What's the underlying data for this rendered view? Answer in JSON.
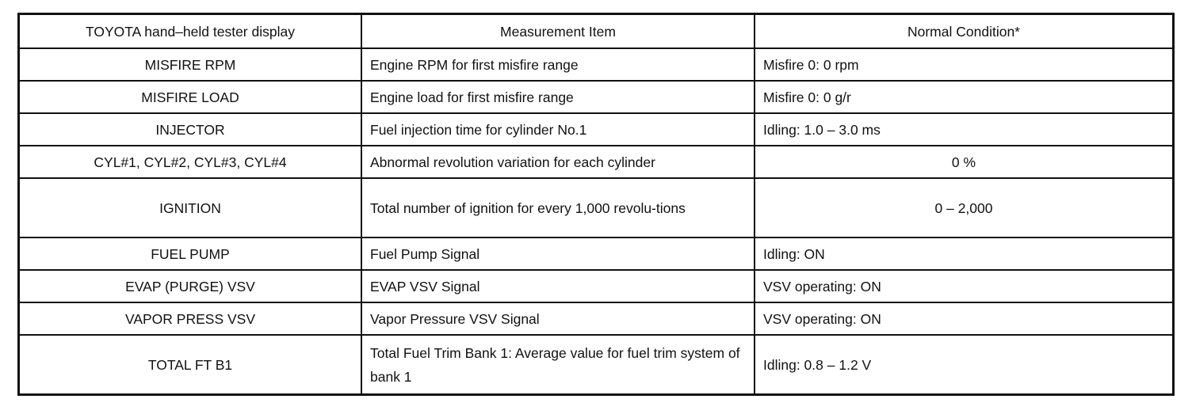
{
  "table": {
    "headers": [
      "TOYOTA hand–held tester display",
      "Measurement Item",
      "Normal Condition*"
    ],
    "rows": [
      {
        "display": "MISFIRE RPM",
        "item": "Engine RPM for first misfire range",
        "condition": "Misfire 0: 0 rpm",
        "center": false
      },
      {
        "display": "MISFIRE LOAD",
        "item": "Engine load for first misfire range",
        "condition": "Misfire 0: 0 g/r",
        "center": false
      },
      {
        "display": "INJECTOR",
        "item": "Fuel injection time for cylinder No.1",
        "condition": "Idling: 1.0 – 3.0 ms",
        "center": false
      },
      {
        "display": "CYL#1, CYL#2, CYL#3, CYL#4",
        "item": "Abnormal revolution variation for each cylinder",
        "condition": "0 %",
        "center": true
      },
      {
        "display": "IGNITION",
        "item": "Total number of ignition for every 1,000 revolu-tions",
        "condition": "0 – 2,000",
        "center": true
      },
      {
        "display": "FUEL PUMP",
        "item": "Fuel Pump Signal",
        "condition": "Idling: ON",
        "center": false
      },
      {
        "display": "EVAP (PURGE) VSV",
        "item": "EVAP VSV Signal",
        "condition": "VSV operating: ON",
        "center": false
      },
      {
        "display": "VAPOR PRESS VSV",
        "item": "Vapor Pressure VSV Signal",
        "condition": "VSV operating: ON",
        "center": false
      },
      {
        "display": "TOTAL FT B1",
        "item": "Total Fuel Trim Bank 1: Average value for fuel trim system of bank 1",
        "condition": "Idling: 0.8 – 1.2 V",
        "center": false
      }
    ]
  }
}
